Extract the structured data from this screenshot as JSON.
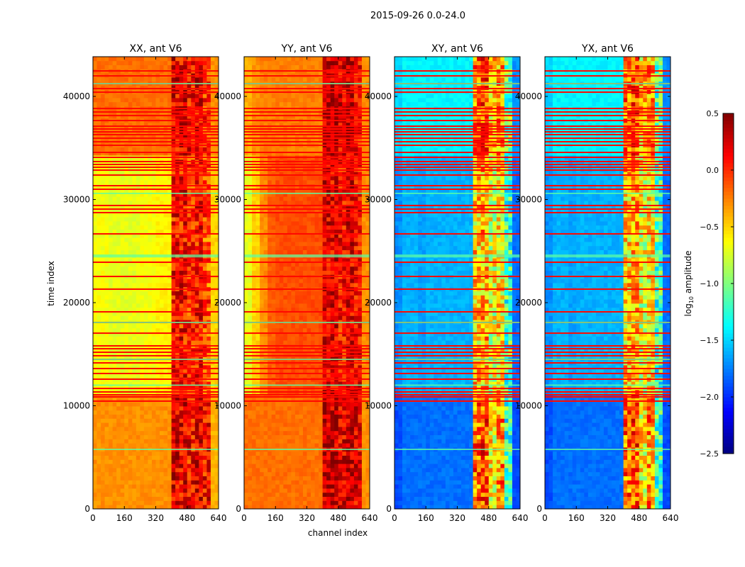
{
  "chart_data": {
    "type": "heatmap",
    "title": "2015-09-26 0.0-24.0",
    "xlabel": "channel index",
    "ylabel": "time index",
    "xlim": [
      0,
      640
    ],
    "ylim": [
      0,
      43850
    ],
    "xticks": [
      "0",
      "160",
      "320",
      "480",
      "640"
    ],
    "xtick_values": [
      0,
      160,
      320,
      480,
      640
    ],
    "yticks": [
      "0",
      "10000",
      "20000",
      "30000",
      "40000"
    ],
    "ytick_values": [
      0,
      10000,
      20000,
      30000,
      40000
    ],
    "colorbar": {
      "label_prefix": "log",
      "label_sub": "10",
      "label_suffix": " amplitude",
      "range": [
        -2.5,
        0.5
      ],
      "ticks": [
        "0.5",
        "0.0",
        "−0.5",
        "−1.0",
        "−1.5",
        "−2.0",
        "−2.5"
      ],
      "tick_values": [
        0.5,
        0.0,
        -0.5,
        -1.0,
        -1.5,
        -2.0,
        -2.5
      ],
      "colormap": "jet"
    },
    "channel_bin_width": 40,
    "time_regimes": [
      [
        0,
        11000
      ],
      [
        11000,
        34200
      ],
      [
        34200,
        43850
      ]
    ],
    "flag_line_value": 0.1,
    "flag_lines": [
      42470,
      41990,
      41240,
      40760,
      40410,
      38830,
      38490,
      38140,
      37660,
      37110,
      36840,
      36560,
      36290,
      35950,
      35600,
      35260,
      34570,
      34090,
      33680,
      33400,
      33130,
      32850,
      32370,
      31340,
      31000,
      29420,
      29070,
      28730,
      26670,
      23920,
      22540,
      21310,
      19110,
      18080,
      17040,
      15810,
      15530,
      15190,
      14850,
      14500,
      14160,
      13610,
      13130,
      12580,
      11680,
      11340,
      11070,
      10860,
      10450
    ],
    "low_line_value": -1.1,
    "low_lines": [
      41240,
      24600,
      24450,
      18080,
      14500,
      5770,
      12000,
      30600
    ],
    "panels": [
      {
        "title": "XX, ant V6",
        "mottle_channels": [
          400,
          600
        ],
        "mottle_amp": 0.35,
        "profiles": [
          [
            -0.3,
            -0.3,
            -0.3,
            -0.3,
            -0.3,
            -0.3,
            -0.3,
            -0.3,
            -0.3,
            -0.3,
            0.2,
            0.2,
            0.1,
            0.2,
            0.1,
            -0.4
          ],
          [
            -0.65,
            -0.65,
            -0.7,
            -0.7,
            -0.7,
            -0.7,
            -0.65,
            -0.65,
            -0.6,
            -0.6,
            0.1,
            0.1,
            0.0,
            0.1,
            -0.1,
            -0.5
          ],
          [
            -0.2,
            -0.2,
            -0.2,
            -0.2,
            -0.2,
            -0.2,
            -0.2,
            -0.2,
            -0.2,
            -0.2,
            0.2,
            0.2,
            0.1,
            0.2,
            0.0,
            -0.3
          ]
        ]
      },
      {
        "title": "YY, ant V6",
        "mottle_channels": [
          400,
          600
        ],
        "mottle_amp": 0.3,
        "profiles": [
          [
            -0.2,
            -0.2,
            -0.2,
            -0.2,
            -0.2,
            -0.2,
            -0.2,
            -0.2,
            -0.2,
            -0.2,
            0.3,
            0.3,
            0.2,
            0.3,
            0.2,
            -0.3
          ],
          [
            -0.7,
            -0.5,
            -0.3,
            -0.15,
            -0.1,
            -0.1,
            -0.1,
            -0.1,
            -0.1,
            -0.1,
            0.2,
            0.2,
            0.1,
            0.2,
            0.1,
            -0.3
          ],
          [
            -0.4,
            -0.3,
            -0.25,
            -0.25,
            -0.25,
            -0.25,
            -0.25,
            -0.25,
            -0.25,
            -0.25,
            0.3,
            0.3,
            0.2,
            0.3,
            0.1,
            -0.3
          ]
        ]
      },
      {
        "title": "XY, ant V6",
        "mottle_channels": [
          400,
          600
        ],
        "mottle_amp": 0.45,
        "profiles": [
          [
            -1.9,
            -1.8,
            -1.8,
            -1.8,
            -1.8,
            -1.8,
            -1.8,
            -1.8,
            -1.8,
            -1.8,
            -0.2,
            -0.1,
            -0.6,
            -0.3,
            -1.2,
            -1.9
          ],
          [
            -1.7,
            -1.6,
            -1.6,
            -1.65,
            -1.6,
            -1.6,
            -1.6,
            -1.6,
            -1.6,
            -1.6,
            -0.5,
            -0.4,
            -0.7,
            -0.6,
            -1.2,
            -1.8
          ],
          [
            -1.5,
            -1.4,
            -1.4,
            -1.4,
            -1.4,
            -1.4,
            -1.4,
            -1.4,
            -1.4,
            -1.4,
            -0.2,
            -0.1,
            -0.5,
            -0.3,
            -1.1,
            -1.7
          ]
        ]
      },
      {
        "title": "YX, ant V6",
        "mottle_channels": [
          400,
          600
        ],
        "mottle_amp": 0.45,
        "profiles": [
          [
            -1.9,
            -1.8,
            -1.8,
            -1.8,
            -1.8,
            -1.8,
            -1.8,
            -1.8,
            -1.8,
            -1.8,
            -0.2,
            -0.1,
            -0.6,
            -0.3,
            -1.2,
            -1.9
          ],
          [
            -1.7,
            -1.6,
            -1.6,
            -1.65,
            -1.6,
            -1.6,
            -1.6,
            -1.6,
            -1.6,
            -1.6,
            -0.5,
            -0.4,
            -0.7,
            -0.6,
            -1.2,
            -1.8
          ],
          [
            -1.5,
            -1.4,
            -1.4,
            -1.4,
            -1.4,
            -1.4,
            -1.4,
            -1.4,
            -1.4,
            -1.4,
            -0.2,
            -0.1,
            -0.5,
            -0.3,
            -1.1,
            -1.7
          ]
        ]
      }
    ]
  }
}
